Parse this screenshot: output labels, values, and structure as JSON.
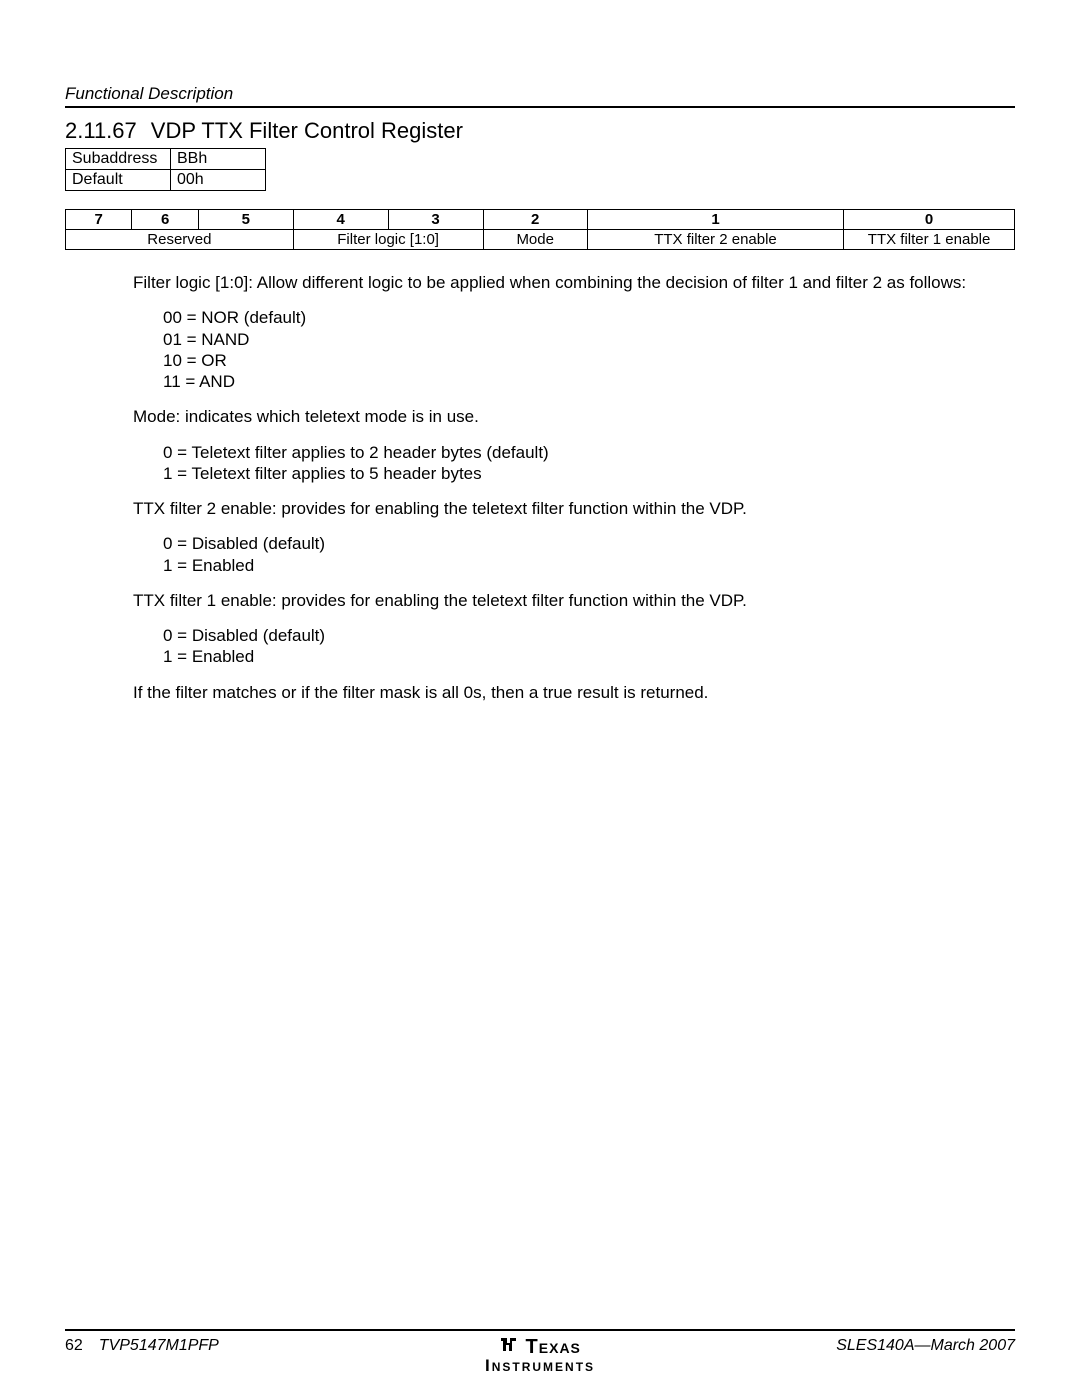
{
  "header": {
    "label": "Functional Description"
  },
  "section": {
    "number": "2.11.67",
    "title": "VDP TTX Filter Control Register"
  },
  "subaddr_table": {
    "rows": [
      {
        "label": "Subaddress",
        "value": "BBh"
      },
      {
        "label": "Default",
        "value": "00h"
      }
    ]
  },
  "bit_table": {
    "bit_headers": [
      "7",
      "6",
      "5",
      "4",
      "3",
      "2",
      "1",
      "0"
    ],
    "fields": [
      {
        "label": "Reserved",
        "span": 3
      },
      {
        "label": "Filter logic [1:0]",
        "span": 2
      },
      {
        "label": "Mode",
        "span": 1
      },
      {
        "label": "TTX filter 2 enable",
        "span": 1
      },
      {
        "label": "TTX filter 1 enable",
        "span": 1
      }
    ],
    "col_widths_pct": [
      7,
      7,
      10,
      10,
      10,
      11,
      27,
      18
    ]
  },
  "body": {
    "p1": "Filter logic [1:0]: Allow different logic to be applied when combining the decision of filter 1 and filter 2 as follows:",
    "logic_list": [
      "00 = NOR (default)",
      "01 = NAND",
      "10 = OR",
      "11 = AND"
    ],
    "p2": "Mode: indicates which teletext mode is in use.",
    "mode_list": [
      "0 = Teletext filter applies to 2 header bytes (default)",
      "1 = Teletext filter applies to 5 header bytes"
    ],
    "p3": "TTX filter 2 enable: provides for enabling the teletext filter function within the VDP.",
    "f2_list": [
      "0 = Disabled (default)",
      "1 = Enabled"
    ],
    "p4": "TTX filter 1 enable: provides for enabling the teletext filter function within the VDP.",
    "f1_list": [
      "0 = Disabled (default)",
      "1 = Enabled"
    ],
    "p5": "If the filter matches or if the filter mask is all 0s, then a true result is returned."
  },
  "footer": {
    "page_no": "62",
    "part": "TVP5147M1PFP",
    "docid": "SLES140A—March 2007",
    "logo_top": "Texas",
    "logo_bottom": "Instruments"
  }
}
